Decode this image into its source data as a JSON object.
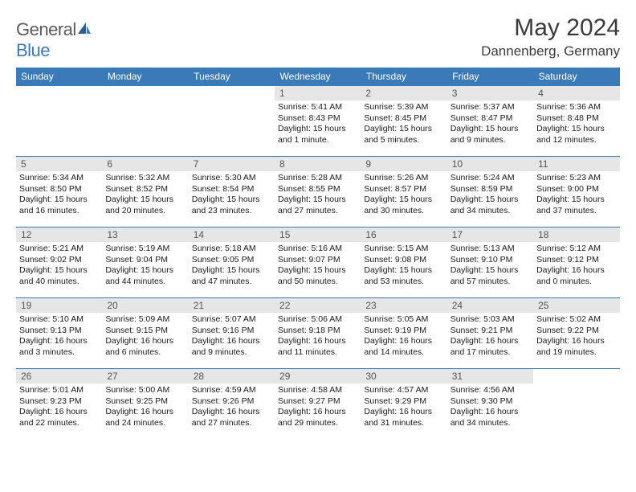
{
  "brand": {
    "part1": "General",
    "part2": "Blue"
  },
  "title": "May 2024",
  "location": "Dannenberg, Germany",
  "colors": {
    "header_bg": "#3a7ab8",
    "header_text": "#ffffff",
    "daynum_bg": "#e6e6e6",
    "daynum_text": "#555555",
    "body_text": "#1a1a1a",
    "rule": "#3a7ab8",
    "page_bg": "#ffffff"
  },
  "weekdays": [
    "Sunday",
    "Monday",
    "Tuesday",
    "Wednesday",
    "Thursday",
    "Friday",
    "Saturday"
  ],
  "weeks": [
    [
      null,
      null,
      null,
      {
        "n": "1",
        "sunrise": "5:41 AM",
        "sunset": "8:43 PM",
        "daylight": "15 hours and 1 minute."
      },
      {
        "n": "2",
        "sunrise": "5:39 AM",
        "sunset": "8:45 PM",
        "daylight": "15 hours and 5 minutes."
      },
      {
        "n": "3",
        "sunrise": "5:37 AM",
        "sunset": "8:47 PM",
        "daylight": "15 hours and 9 minutes."
      },
      {
        "n": "4",
        "sunrise": "5:36 AM",
        "sunset": "8:48 PM",
        "daylight": "15 hours and 12 minutes."
      }
    ],
    [
      {
        "n": "5",
        "sunrise": "5:34 AM",
        "sunset": "8:50 PM",
        "daylight": "15 hours and 16 minutes."
      },
      {
        "n": "6",
        "sunrise": "5:32 AM",
        "sunset": "8:52 PM",
        "daylight": "15 hours and 20 minutes."
      },
      {
        "n": "7",
        "sunrise": "5:30 AM",
        "sunset": "8:54 PM",
        "daylight": "15 hours and 23 minutes."
      },
      {
        "n": "8",
        "sunrise": "5:28 AM",
        "sunset": "8:55 PM",
        "daylight": "15 hours and 27 minutes."
      },
      {
        "n": "9",
        "sunrise": "5:26 AM",
        "sunset": "8:57 PM",
        "daylight": "15 hours and 30 minutes."
      },
      {
        "n": "10",
        "sunrise": "5:24 AM",
        "sunset": "8:59 PM",
        "daylight": "15 hours and 34 minutes."
      },
      {
        "n": "11",
        "sunrise": "5:23 AM",
        "sunset": "9:00 PM",
        "daylight": "15 hours and 37 minutes."
      }
    ],
    [
      {
        "n": "12",
        "sunrise": "5:21 AM",
        "sunset": "9:02 PM",
        "daylight": "15 hours and 40 minutes."
      },
      {
        "n": "13",
        "sunrise": "5:19 AM",
        "sunset": "9:04 PM",
        "daylight": "15 hours and 44 minutes."
      },
      {
        "n": "14",
        "sunrise": "5:18 AM",
        "sunset": "9:05 PM",
        "daylight": "15 hours and 47 minutes."
      },
      {
        "n": "15",
        "sunrise": "5:16 AM",
        "sunset": "9:07 PM",
        "daylight": "15 hours and 50 minutes."
      },
      {
        "n": "16",
        "sunrise": "5:15 AM",
        "sunset": "9:08 PM",
        "daylight": "15 hours and 53 minutes."
      },
      {
        "n": "17",
        "sunrise": "5:13 AM",
        "sunset": "9:10 PM",
        "daylight": "15 hours and 57 minutes."
      },
      {
        "n": "18",
        "sunrise": "5:12 AM",
        "sunset": "9:12 PM",
        "daylight": "16 hours and 0 minutes."
      }
    ],
    [
      {
        "n": "19",
        "sunrise": "5:10 AM",
        "sunset": "9:13 PM",
        "daylight": "16 hours and 3 minutes."
      },
      {
        "n": "20",
        "sunrise": "5:09 AM",
        "sunset": "9:15 PM",
        "daylight": "16 hours and 6 minutes."
      },
      {
        "n": "21",
        "sunrise": "5:07 AM",
        "sunset": "9:16 PM",
        "daylight": "16 hours and 9 minutes."
      },
      {
        "n": "22",
        "sunrise": "5:06 AM",
        "sunset": "9:18 PM",
        "daylight": "16 hours and 11 minutes."
      },
      {
        "n": "23",
        "sunrise": "5:05 AM",
        "sunset": "9:19 PM",
        "daylight": "16 hours and 14 minutes."
      },
      {
        "n": "24",
        "sunrise": "5:03 AM",
        "sunset": "9:21 PM",
        "daylight": "16 hours and 17 minutes."
      },
      {
        "n": "25",
        "sunrise": "5:02 AM",
        "sunset": "9:22 PM",
        "daylight": "16 hours and 19 minutes."
      }
    ],
    [
      {
        "n": "26",
        "sunrise": "5:01 AM",
        "sunset": "9:23 PM",
        "daylight": "16 hours and 22 minutes."
      },
      {
        "n": "27",
        "sunrise": "5:00 AM",
        "sunset": "9:25 PM",
        "daylight": "16 hours and 24 minutes."
      },
      {
        "n": "28",
        "sunrise": "4:59 AM",
        "sunset": "9:26 PM",
        "daylight": "16 hours and 27 minutes."
      },
      {
        "n": "29",
        "sunrise": "4:58 AM",
        "sunset": "9:27 PM",
        "daylight": "16 hours and 29 minutes."
      },
      {
        "n": "30",
        "sunrise": "4:57 AM",
        "sunset": "9:29 PM",
        "daylight": "16 hours and 31 minutes."
      },
      {
        "n": "31",
        "sunrise": "4:56 AM",
        "sunset": "9:30 PM",
        "daylight": "16 hours and 34 minutes."
      },
      null
    ]
  ],
  "labels": {
    "sunrise": "Sunrise:",
    "sunset": "Sunset:",
    "daylight": "Daylight:"
  }
}
